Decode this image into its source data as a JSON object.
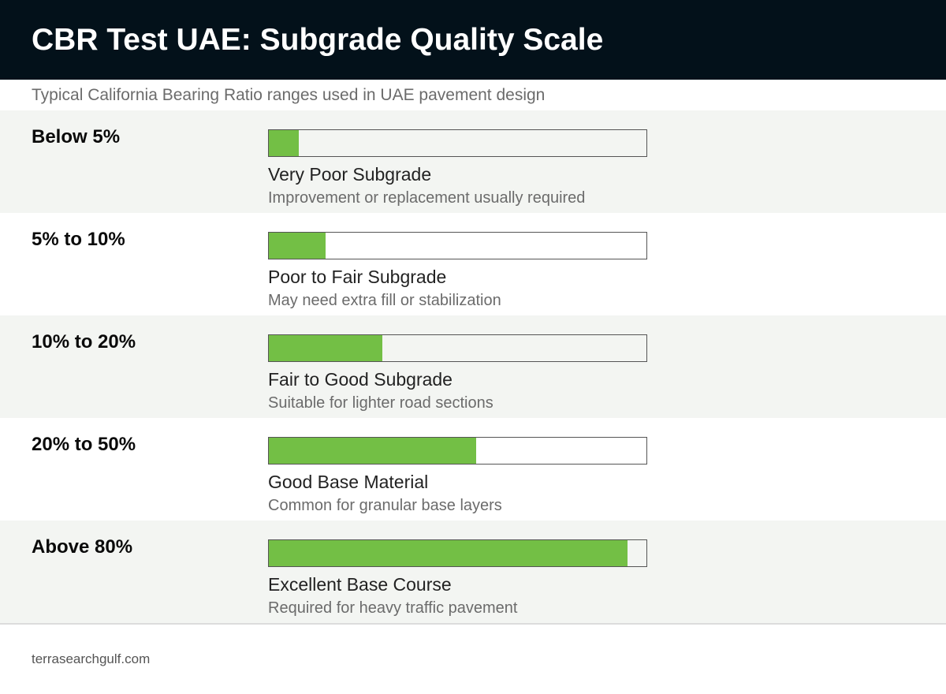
{
  "header": {
    "title": "CBR Test UAE: Subgrade Quality Scale",
    "subtitle": "Typical California Bearing Ratio ranges used in UAE pavement design"
  },
  "colors": {
    "header_bg": "#03111a",
    "bar_fill": "#73bf45",
    "shaded_row_bg": "#f3f5f2"
  },
  "chart_data": {
    "type": "bar",
    "title": "CBR Test UAE: Subgrade Quality Scale",
    "subtitle": "Typical California Bearing Ratio ranges used in UAE pavement design",
    "orientation": "horizontal",
    "categories": [
      "Below 5%",
      "5% to 10%",
      "10% to 20%",
      "20% to 50%",
      "Above 80%"
    ],
    "values": [
      0.08,
      0.15,
      0.3,
      0.55,
      0.95
    ],
    "value_unit": "fraction of bar length",
    "labels": [
      "Very Poor Subgrade",
      "Poor to Fair Subgrade",
      "Fair to Good Subgrade",
      "Good Base Material",
      "Excellent Base Course"
    ],
    "descriptions": [
      "Improvement or replacement usually required",
      "May need extra fill or stabilization",
      "Suitable for lighter road sections",
      "Common for granular base layers",
      "Required for heavy traffic pavement"
    ],
    "xlabel": "",
    "ylabel": "",
    "ylim": [
      0,
      1
    ],
    "grid": false,
    "legend": "none"
  },
  "footer": {
    "source": "terrasearchgulf.com"
  }
}
